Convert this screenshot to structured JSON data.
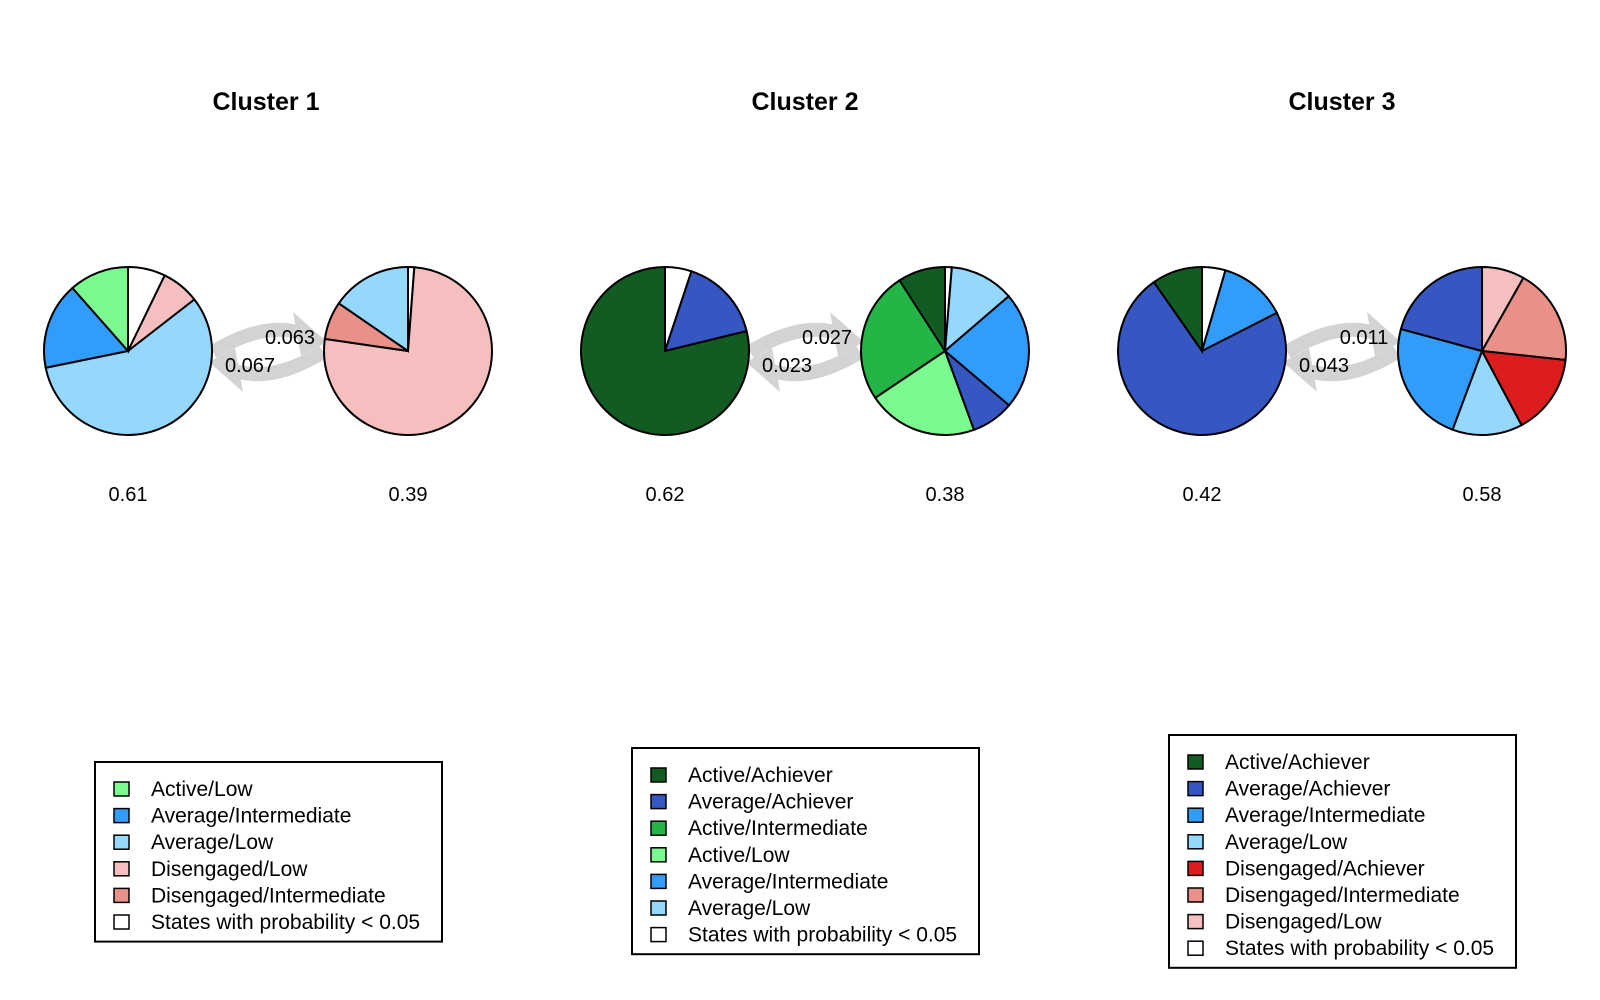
{
  "colors": {
    "Active/Achiever": "#125b22",
    "Average/Achiever": "#3657c2",
    "Active/Intermediate": "#23b546",
    "Active/Low": "#7afa8f",
    "Average/Intermediate": "#319cf9",
    "Average/Low": "#96d8fd",
    "Disengaged/Achiever": "#dd1c1e",
    "Disengaged/Intermediate": "#e99089",
    "Disengaged/Low": "#f5bfc0",
    "States with probability < 0.05": "#ffffff",
    "transition_arrow": "#d3d3d3"
  },
  "chart_data": [
    {
      "type": "pie",
      "title": "Cluster 1",
      "states": [
        {
          "label": "0.61",
          "slices": [
            {
              "name": "States with probability < 0.05",
              "value": 0.072
            },
            {
              "name": "Disengaged/Low",
              "value": 0.073
            },
            {
              "name": "Average/Low",
              "value": 0.573
            },
            {
              "name": "Average/Intermediate",
              "value": 0.167
            },
            {
              "name": "Active/Low",
              "value": 0.115
            }
          ]
        },
        {
          "label": "0.39",
          "slices": [
            {
              "name": "States with probability < 0.05",
              "value": 0.012
            },
            {
              "name": "Disengaged/Low",
              "value": 0.761
            },
            {
              "name": "Disengaged/Intermediate",
              "value": 0.073
            },
            {
              "name": "Average/Low",
              "value": 0.154
            }
          ]
        }
      ],
      "transitions": {
        "upper": "0.063",
        "lower": "0.067"
      },
      "legend": [
        "Active/Low",
        "Average/Intermediate",
        "Average/Low",
        "Disengaged/Low",
        "Disengaged/Intermediate",
        "States with probability < 0.05"
      ]
    },
    {
      "type": "pie",
      "title": "Cluster 2",
      "states": [
        {
          "label": "0.62",
          "slices": [
            {
              "name": "States with probability < 0.05",
              "value": 0.051
            },
            {
              "name": "Average/Achiever",
              "value": 0.161
            },
            {
              "name": "Active/Achiever",
              "value": 0.788
            }
          ]
        },
        {
          "label": "0.38",
          "slices": [
            {
              "name": "States with probability < 0.05",
              "value": 0.013
            },
            {
              "name": "Average/Low",
              "value": 0.124
            },
            {
              "name": "Average/Intermediate",
              "value": 0.225
            },
            {
              "name": "Average/Achiever",
              "value": 0.082
            },
            {
              "name": "Active/Low",
              "value": 0.212
            },
            {
              "name": "Active/Intermediate",
              "value": 0.253
            },
            {
              "name": "Active/Achiever",
              "value": 0.091
            }
          ]
        }
      ],
      "transitions": {
        "upper": "0.027",
        "lower": "0.023"
      },
      "legend": [
        "Active/Achiever",
        "Average/Achiever",
        "Active/Intermediate",
        "Active/Low",
        "Average/Intermediate",
        "Average/Low",
        "States with probability < 0.05"
      ]
    },
    {
      "type": "pie",
      "title": "Cluster 3",
      "states": [
        {
          "label": "0.42",
          "slices": [
            {
              "name": "States with probability < 0.05",
              "value": 0.045
            },
            {
              "name": "Average/Intermediate",
              "value": 0.13
            },
            {
              "name": "Average/Achiever",
              "value": 0.728
            },
            {
              "name": "Active/Achiever",
              "value": 0.097
            }
          ]
        },
        {
          "label": "0.58",
          "slices": [
            {
              "name": "Disengaged/Low",
              "value": 0.082
            },
            {
              "name": "Disengaged/Intermediate",
              "value": 0.185
            },
            {
              "name": "Disengaged/Achiever",
              "value": 0.155
            },
            {
              "name": "Average/Low",
              "value": 0.135
            },
            {
              "name": "Average/Intermediate",
              "value": 0.235
            },
            {
              "name": "Average/Achiever",
              "value": 0.208
            }
          ]
        }
      ],
      "transitions": {
        "upper": "0.011",
        "lower": "0.043"
      },
      "legend": [
        "Active/Achiever",
        "Average/Achiever",
        "Average/Intermediate",
        "Average/Low",
        "Disengaged/Achiever",
        "Disengaged/Intermediate",
        "Disengaged/Low",
        "States with probability < 0.05"
      ]
    }
  ]
}
